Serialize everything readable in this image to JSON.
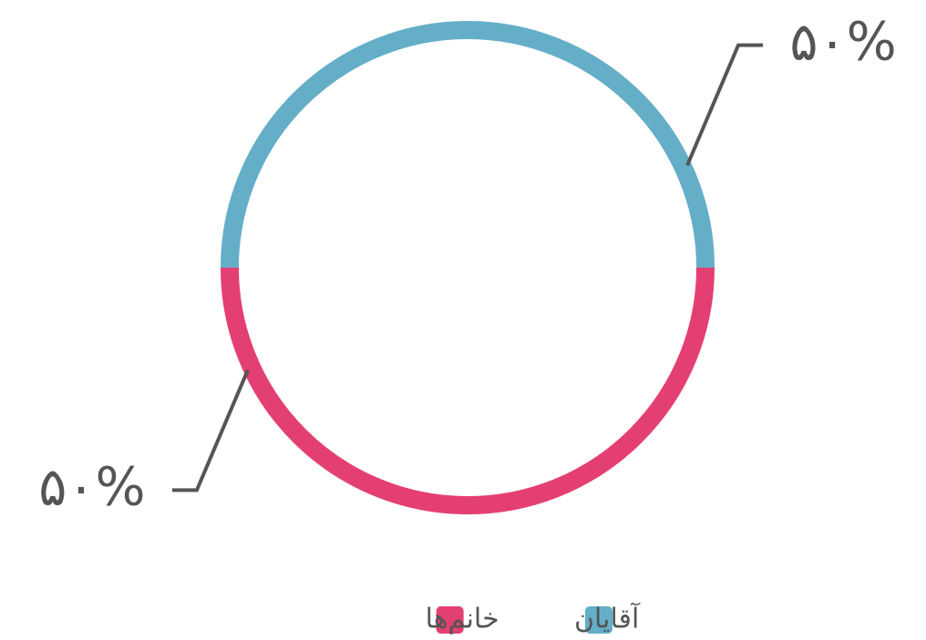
{
  "chart_data": {
    "type": "donut",
    "series": [
      {
        "name": "آقایان",
        "color": "#64aec8",
        "values": [
          50
        ],
        "value_labels": [
          "۵۰%"
        ]
      },
      {
        "name": "خانم‌ها",
        "color": "#e43f72",
        "values": [
          50
        ],
        "value_labels": [
          "۵۰%"
        ]
      }
    ]
  }
}
